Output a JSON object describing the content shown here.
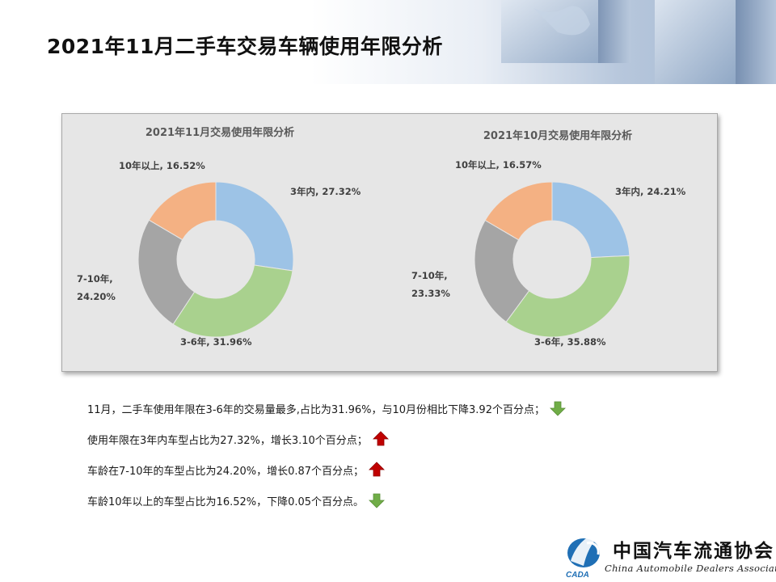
{
  "page": {
    "title": "2021年11月二手车交易车辆使用年限分析"
  },
  "chart_data": [
    {
      "type": "pie",
      "title": "2021年11月交易使用年限分析",
      "categories": [
        "3年内",
        "3-6年",
        "7-10年",
        "10年以上"
      ],
      "values": [
        27.32,
        31.96,
        24.2,
        16.52
      ],
      "labels": [
        "3年内, 27.32%",
        "3-6年, 31.96%",
        "7-10年,",
        "10年以上, 16.52%"
      ],
      "labels_extra": [
        "",
        "",
        "24.20%",
        ""
      ],
      "colors": [
        "#9dc3e6",
        "#a9d18e",
        "#a5a5a5",
        "#f4b183"
      ],
      "hole": 0.5
    },
    {
      "type": "pie",
      "title": "2021年10月交易使用年限分析",
      "categories": [
        "3年内",
        "3-6年",
        "7-10年",
        "10年以上"
      ],
      "values": [
        24.21,
        35.88,
        23.33,
        16.57
      ],
      "labels": [
        "3年内, 24.21%",
        "3-6年, 35.88%",
        "7-10年,",
        "10年以上, 16.57%"
      ],
      "labels_extra": [
        "",
        "",
        "23.33%",
        ""
      ],
      "colors": [
        "#9dc3e6",
        "#a9d18e",
        "#a5a5a5",
        "#f4b183"
      ],
      "hole": 0.5
    }
  ],
  "notes": [
    {
      "text": "11月，二手车使用年限在3-6年的交易量最多,占比为31.96%，与10月份相比下降3.92个百分点；",
      "trend": "down",
      "arrow_color": "#70ad47",
      "icon": "down-arrow-icon"
    },
    {
      "text": "使用年限在3年内车型占比为27.32%，增长3.10个百分点；",
      "trend": "up",
      "arrow_color": "#c00000",
      "icon": "up-arrow-icon"
    },
    {
      "text": "车龄在7-10年的车型占比为24.20%，增长0.87个百分点；",
      "trend": "up",
      "arrow_color": "#c00000",
      "icon": "up-arrow-icon"
    },
    {
      "text": "车龄10年以上的车型占比为16.52%，下降0.05个百分点。",
      "trend": "down",
      "arrow_color": "#70ad47",
      "icon": "down-arrow-icon"
    }
  ],
  "footer": {
    "org_name_cn": "中国汽车流通协会",
    "org_name_en": "China Automobile Dealers Association",
    "logo_abbr": "CADA"
  }
}
